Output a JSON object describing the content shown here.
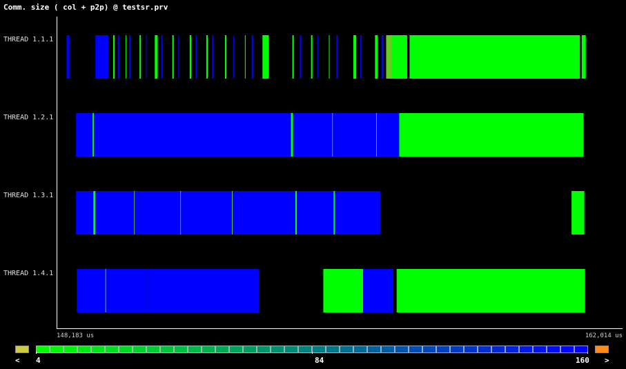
{
  "window": {
    "title": "Comm. size ( col + p2p) @ testsr.prv"
  },
  "chart_data": {
    "type": "timeline",
    "time_unit": "us",
    "x_range": [
      148183,
      162014
    ],
    "x_tick_labels": [
      "148,183 us",
      "162,014 us"
    ],
    "threads": [
      {
        "name": "THREAD 1.1.1",
        "segments": [
          {
            "start": 148427,
            "end": 148498,
            "state": "large"
          },
          {
            "start": 149131,
            "end": 149446,
            "state": "large"
          },
          {
            "start": 149566,
            "end": 149602,
            "state": "small"
          },
          {
            "start": 149679,
            "end": 149715,
            "state": "large"
          },
          {
            "start": 149871,
            "end": 149888,
            "state": "small"
          },
          {
            "start": 149955,
            "end": 149990,
            "state": "large"
          },
          {
            "start": 150209,
            "end": 150244,
            "state": "small"
          },
          {
            "start": 150366,
            "end": 150383,
            "state": "large"
          },
          {
            "start": 150583,
            "end": 150653,
            "state": "small"
          },
          {
            "start": 150740,
            "end": 150775,
            "state": "large"
          },
          {
            "start": 151011,
            "end": 151046,
            "state": "small"
          },
          {
            "start": 151156,
            "end": 151174,
            "state": "large"
          },
          {
            "start": 151435,
            "end": 151474,
            "state": "small"
          },
          {
            "start": 151580,
            "end": 151615,
            "state": "large"
          },
          {
            "start": 151841,
            "end": 151877,
            "state": "small"
          },
          {
            "start": 151982,
            "end": 152017,
            "state": "large"
          },
          {
            "start": 152298,
            "end": 152334,
            "state": "small"
          },
          {
            "start": 152497,
            "end": 152515,
            "state": "large"
          },
          {
            "start": 152785,
            "end": 152803,
            "state": "small"
          },
          {
            "start": 152952,
            "end": 152987,
            "state": "large"
          },
          {
            "start": 153215,
            "end": 153370,
            "state": "small"
          },
          {
            "start": 153944,
            "end": 153980,
            "state": "small"
          },
          {
            "start": 154128,
            "end": 154164,
            "state": "large"
          },
          {
            "start": 154401,
            "end": 154436,
            "state": "small"
          },
          {
            "start": 154556,
            "end": 154574,
            "state": "large"
          },
          {
            "start": 154837,
            "end": 154855,
            "state": "small"
          },
          {
            "start": 155019,
            "end": 155054,
            "state": "large"
          },
          {
            "start": 155436,
            "end": 155506,
            "state": "small"
          },
          {
            "start": 155605,
            "end": 155640,
            "state": "large"
          },
          {
            "start": 155964,
            "end": 156034,
            "state": "small"
          },
          {
            "start": 156123,
            "end": 156176,
            "state": "large"
          },
          {
            "start": 156236,
            "end": 156380,
            "state": "mid"
          },
          {
            "start": 156380,
            "end": 156751,
            "state": "small"
          },
          {
            "start": 156809,
            "end": 160972,
            "state": "small"
          },
          {
            "start": 161017,
            "end": 161115,
            "state": "small"
          }
        ]
      },
      {
        "name": "THREAD 1.2.1",
        "segments": [
          {
            "start": 148658,
            "end": 149063,
            "state": "large"
          },
          {
            "start": 149063,
            "end": 149099,
            "state": "small"
          },
          {
            "start": 149099,
            "end": 153910,
            "state": "large"
          },
          {
            "start": 153910,
            "end": 153963,
            "state": "small"
          },
          {
            "start": 153963,
            "end": 154917,
            "state": "large"
          },
          {
            "start": 154917,
            "end": 154935,
            "state": "mid"
          },
          {
            "start": 154935,
            "end": 155992,
            "state": "large"
          },
          {
            "start": 155992,
            "end": 156010,
            "state": "mid"
          },
          {
            "start": 156010,
            "end": 156556,
            "state": "large"
          },
          {
            "start": 156556,
            "end": 161061,
            "state": "small"
          }
        ]
      },
      {
        "name": "THREAD 1.3.1",
        "segments": [
          {
            "start": 148658,
            "end": 149081,
            "state": "large"
          },
          {
            "start": 149081,
            "end": 149134,
            "state": "small"
          },
          {
            "start": 149134,
            "end": 150076,
            "state": "large"
          },
          {
            "start": 150076,
            "end": 150094,
            "state": "mid"
          },
          {
            "start": 150094,
            "end": 151205,
            "state": "large"
          },
          {
            "start": 151205,
            "end": 151223,
            "state": "mid"
          },
          {
            "start": 151223,
            "end": 152467,
            "state": "large"
          },
          {
            "start": 152467,
            "end": 152485,
            "state": "mid"
          },
          {
            "start": 152485,
            "end": 154018,
            "state": "large"
          },
          {
            "start": 154018,
            "end": 154054,
            "state": "small"
          },
          {
            "start": 154054,
            "end": 154952,
            "state": "large"
          },
          {
            "start": 154952,
            "end": 154987,
            "state": "small"
          },
          {
            "start": 154987,
            "end": 156091,
            "state": "large"
          },
          {
            "start": 160768,
            "end": 161079,
            "state": "small"
          }
        ]
      },
      {
        "name": "THREAD 1.4.1",
        "segments": [
          {
            "start": 148676,
            "end": 149375,
            "state": "large"
          },
          {
            "start": 149375,
            "end": 149393,
            "state": "mid"
          },
          {
            "start": 149393,
            "end": 150391,
            "state": "large"
          },
          {
            "start": 150391,
            "end": 150409,
            "state": "dark"
          },
          {
            "start": 150409,
            "end": 153123,
            "state": "large"
          },
          {
            "start": 154701,
            "end": 155672,
            "state": "small"
          },
          {
            "start": 155672,
            "end": 156414,
            "state": "large"
          },
          {
            "start": 156493,
            "end": 161097,
            "state": "small"
          }
        ]
      }
    ],
    "state_colors": {
      "small": "#00ff00",
      "large": "#0000ff",
      "mid": "#66cc22",
      "dark": "#003300"
    },
    "legend": {
      "min": 4,
      "mid": 84,
      "max": 160,
      "min_label": "4",
      "mid_label": "84",
      "max_label": "160",
      "left_arrow": "<",
      "right_arrow": ">",
      "gradient_start": "#00ff00",
      "gradient_end": "#0000ff",
      "below_color": "#cccc44",
      "above_color": "#ff8c1a",
      "steps": 40
    }
  }
}
